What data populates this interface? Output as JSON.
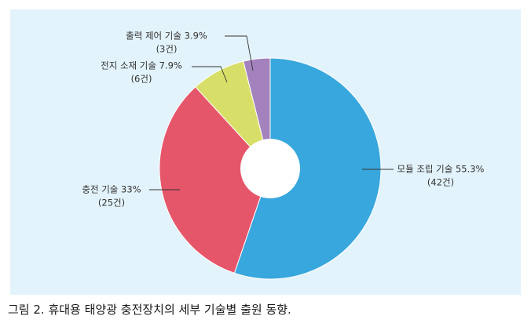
{
  "caption": "그림 2. 휴대용 태양광 충전장치의 세부 기술별 출원 동향.",
  "chart_data": {
    "type": "pie",
    "title": "",
    "slices": [
      {
        "label": "모듈 조립 기술",
        "percent_text": "55.3%",
        "value": 55.3,
        "count_text": "(42건)",
        "count": 42,
        "color": "#38a7dd"
      },
      {
        "label": "충전 기술",
        "percent_text": "33%",
        "value": 33.0,
        "count_text": "(25건)",
        "count": 25,
        "color": "#e6566a"
      },
      {
        "label": "전지 소재 기술",
        "percent_text": "7.9%",
        "value": 7.9,
        "count_text": "(6건)",
        "count": 6,
        "color": "#d8df68"
      },
      {
        "label": "출력 제어 기술",
        "percent_text": "3.9%",
        "value": 3.9,
        "count_text": "(3건)",
        "count": 3,
        "color": "#a382bd"
      }
    ]
  }
}
